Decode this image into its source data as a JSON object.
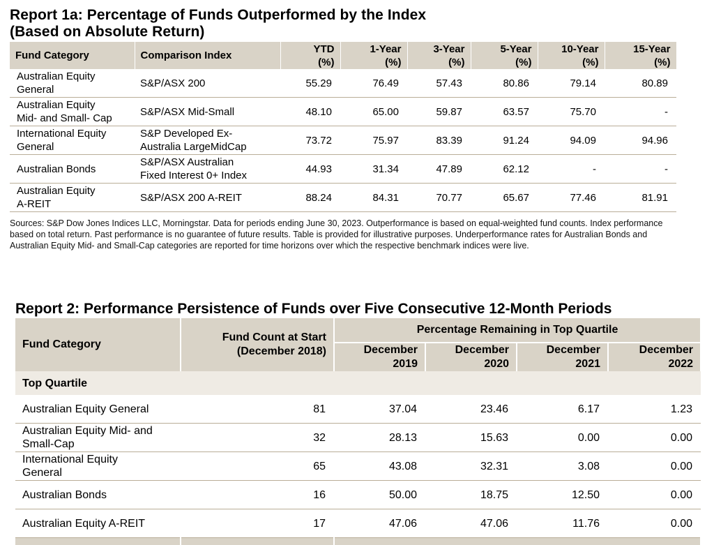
{
  "report1": {
    "title_line1": "Report 1a: Percentage of Funds Outperformed by the Index",
    "title_line2": "(Based on Absolute Return)",
    "headers": {
      "fund_category": "Fund Category",
      "comparison_index": "Comparison Index",
      "ytd": [
        "YTD",
        "(%)"
      ],
      "y1": [
        "1-Year",
        "(%)"
      ],
      "y3": [
        "3-Year",
        "(%)"
      ],
      "y5": [
        "5-Year",
        "(%)"
      ],
      "y10": [
        "10-Year",
        "(%)"
      ],
      "y15": [
        "15-Year",
        "(%)"
      ]
    },
    "rows": [
      {
        "category": [
          "Australian Equity",
          "General"
        ],
        "index": [
          "S&P/ASX 200",
          ""
        ],
        "ytd": "55.29",
        "y1": "76.49",
        "y3": "57.43",
        "y5": "80.86",
        "y10": "79.14",
        "y15": "80.89"
      },
      {
        "category": [
          "Australian Equity",
          "Mid- and Small- Cap"
        ],
        "index": [
          "S&P/ASX Mid-Small",
          ""
        ],
        "ytd": "48.10",
        "y1": "65.00",
        "y3": "59.87",
        "y5": "63.57",
        "y10": "75.70",
        "y15": "-"
      },
      {
        "category": [
          "International Equity",
          "General"
        ],
        "index": [
          "S&P Developed Ex-",
          "Australia LargeMidCap"
        ],
        "ytd": "73.72",
        "y1": "75.97",
        "y3": "83.39",
        "y5": "91.24",
        "y10": "94.09",
        "y15": "94.96"
      },
      {
        "category": [
          "Australian Bonds",
          ""
        ],
        "index": [
          "S&P/ASX Australian",
          "Fixed Interest 0+ Index"
        ],
        "ytd": "44.93",
        "y1": "31.34",
        "y3": "47.89",
        "y5": "62.12",
        "y10": "-",
        "y15": "-"
      },
      {
        "category": [
          "Australian Equity",
          "A-REIT"
        ],
        "index": [
          "S&P/ASX 200 A-REIT",
          ""
        ],
        "ytd": "88.24",
        "y1": "84.31",
        "y3": "70.77",
        "y5": "65.67",
        "y10": "77.46",
        "y15": "81.91"
      }
    ],
    "sources": "Sources: S&P Dow Jones Indices LLC, Morningstar. Data for periods ending June 30, 2023. Outperformance is based on equal-weighted fund counts. Index performance based on total return. Past performance is no guarantee of future results. Table is provided for illustrative purposes. Underperformance rates for Australian Bonds and Australian Equity Mid- and Small-Cap categories are reported for time horizons over which the respective benchmark indices were live."
  },
  "report2": {
    "title": "Report 2: Performance Persistence of Funds over Five Consecutive 12-Month Periods",
    "headers": {
      "fund_category": "Fund Category",
      "fund_count": [
        "Fund Count at Start",
        "(December 2018)"
      ],
      "group": "Percentage Remaining in Top Quartile",
      "dec2019": [
        "December",
        "2019"
      ],
      "dec2020": [
        "December",
        "2020"
      ],
      "dec2021": [
        "December",
        "2021"
      ],
      "dec2022": [
        "December",
        "2022"
      ]
    },
    "section": "Top Quartile",
    "rows": [
      {
        "category": [
          "Australian Equity General",
          ""
        ],
        "count": "81",
        "d2019": "37.04",
        "d2020": "23.46",
        "d2021": "6.17",
        "d2022": "1.23"
      },
      {
        "category": [
          "Australian Equity Mid- and",
          "Small-Cap"
        ],
        "count": "32",
        "d2019": "28.13",
        "d2020": "15.63",
        "d2021": "0.00",
        "d2022": "0.00"
      },
      {
        "category": [
          "International Equity",
          "General"
        ],
        "count": "65",
        "d2019": "43.08",
        "d2020": "32.31",
        "d2021": "3.08",
        "d2022": "0.00"
      },
      {
        "category": [
          "Australian Bonds",
          ""
        ],
        "count": "16",
        "d2019": "50.00",
        "d2020": "18.75",
        "d2021": "12.50",
        "d2022": "0.00"
      },
      {
        "category": [
          "Australian Equity A-REIT",
          ""
        ],
        "count": "17",
        "d2019": "47.06",
        "d2020": "47.06",
        "d2021": "11.76",
        "d2022": "0.00"
      }
    ]
  },
  "colors": {
    "header_bg": "#d9d3c7",
    "section_bg": "#efebe4",
    "rule": "#b9ad97"
  }
}
